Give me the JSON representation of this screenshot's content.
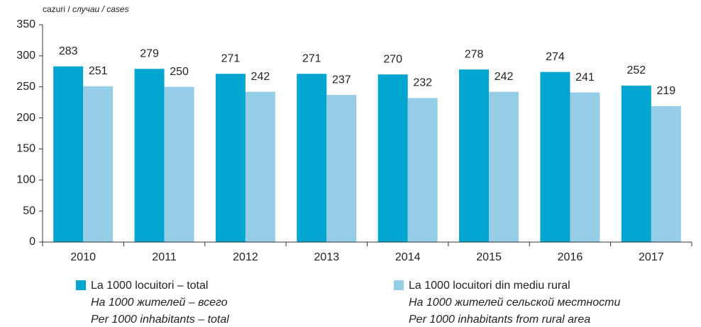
{
  "chart_data": {
    "type": "bar",
    "ylabel": [
      "cazuri /",
      "случаи / cases"
    ],
    "categories": [
      "2010",
      "2011",
      "2012",
      "2013",
      "2014",
      "2015",
      "2016",
      "2017"
    ],
    "series": [
      {
        "name": "La 1000 locuitori – total",
        "translations": [
          "На 1000 жителей – всего",
          "Per 1000 inhabitants – total"
        ],
        "color": "#00a6d0",
        "values": [
          283,
          279,
          271,
          271,
          270,
          278,
          274,
          252
        ]
      },
      {
        "name": "La 1000 locuitori din mediu rural",
        "translations": [
          "На 1000 жителей сельской  местности",
          "Per 1000 inhabitants from rural area"
        ],
        "color": "#95cde6",
        "values": [
          251,
          250,
          242,
          237,
          232,
          242,
          241,
          219
        ]
      }
    ],
    "ylim": [
      0,
      350
    ],
    "yticks": [
      0,
      50,
      100,
      150,
      200,
      250,
      300,
      350
    ]
  }
}
